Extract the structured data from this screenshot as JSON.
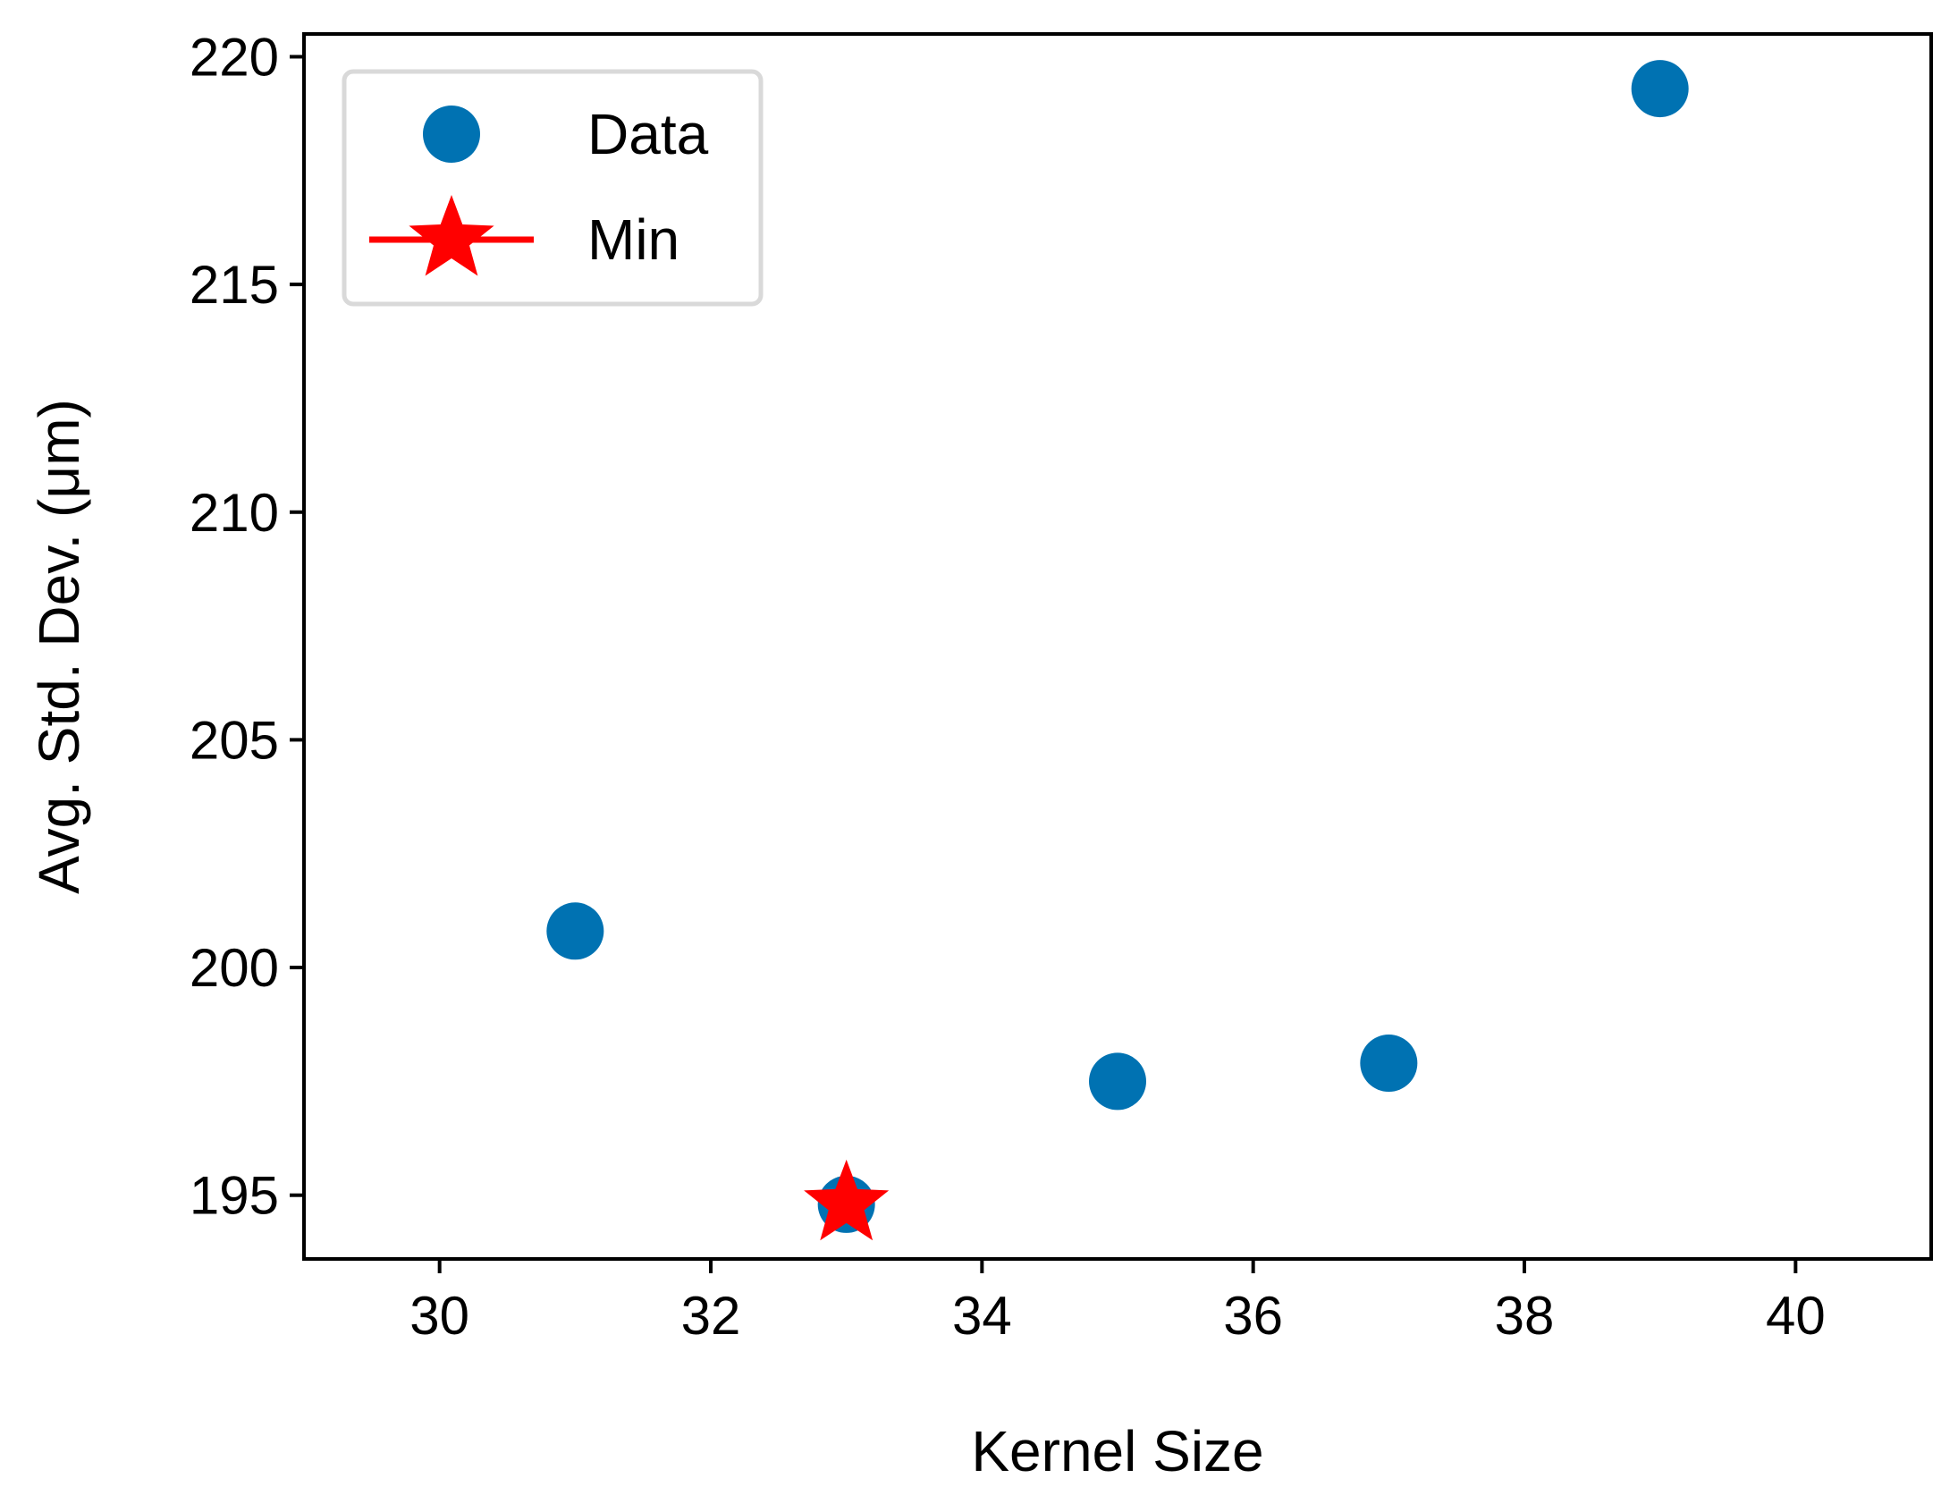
{
  "chart_data": {
    "type": "scatter",
    "xlabel": "Kernel Size",
    "ylabel": "Avg. Std. Dev. (μm)",
    "xlim": [
      29,
      41
    ],
    "ylim": [
      193.6,
      220.5
    ],
    "xticks": [
      30,
      32,
      34,
      36,
      38,
      40
    ],
    "yticks": [
      195,
      200,
      205,
      210,
      215,
      220
    ],
    "grid": false,
    "legend": {
      "placement": "top-left"
    },
    "series": [
      {
        "name": "Data",
        "marker": "circle",
        "color": "#0072b2",
        "x": [
          31,
          33,
          35,
          37,
          39
        ],
        "y": [
          200.8,
          194.8,
          197.5,
          197.9,
          219.3
        ]
      },
      {
        "name": "Min",
        "marker": "star",
        "line": true,
        "color": "#ff0000",
        "x": [
          33
        ],
        "y": [
          194.8
        ]
      }
    ]
  }
}
